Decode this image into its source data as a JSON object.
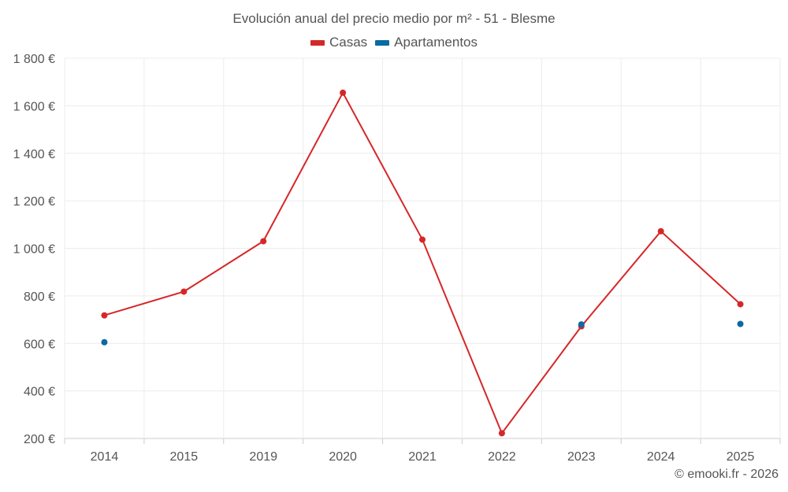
{
  "chart_data": {
    "type": "line",
    "title": "Evolución anual del precio medio por m² - 51 - Blesme",
    "categories": [
      "2014",
      "2015",
      "2019",
      "2020",
      "2021",
      "2022",
      "2023",
      "2024",
      "2025"
    ],
    "ylim": [
      200,
      1800
    ],
    "yticks": [
      200,
      400,
      600,
      800,
      1000,
      1200,
      1400,
      1600,
      1800
    ],
    "ytick_labels": [
      "200 €",
      "400 €",
      "600 €",
      "800 €",
      "1 000 €",
      "1 200 €",
      "1 400 €",
      "1 600 €",
      "1 800 €"
    ],
    "grid": true,
    "legend_position": "top-center",
    "series": [
      {
        "name": "Casas",
        "color": "#d62728",
        "line": true,
        "values": [
          718,
          818,
          1030,
          1655,
          1037,
          222,
          672,
          1072,
          765
        ]
      },
      {
        "name": "Apartamentos",
        "color": "#0b6aa2",
        "line": false,
        "values": [
          605,
          null,
          null,
          null,
          null,
          null,
          680,
          null,
          682
        ]
      }
    ]
  },
  "footer": {
    "copyright": "© emooki.fr - 2026"
  }
}
